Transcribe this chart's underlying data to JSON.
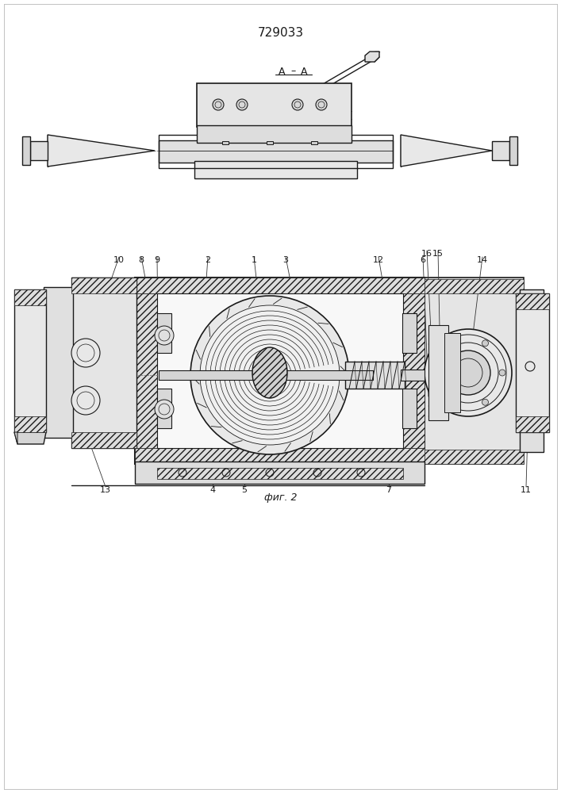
{
  "title": "729033",
  "caption": "фиг. 2",
  "section_label": "A – A",
  "bg_color": "#ffffff",
  "lc": "#1a1a1a",
  "title_fontsize": 11,
  "caption_fontsize": 9,
  "label_fontsize": 8
}
